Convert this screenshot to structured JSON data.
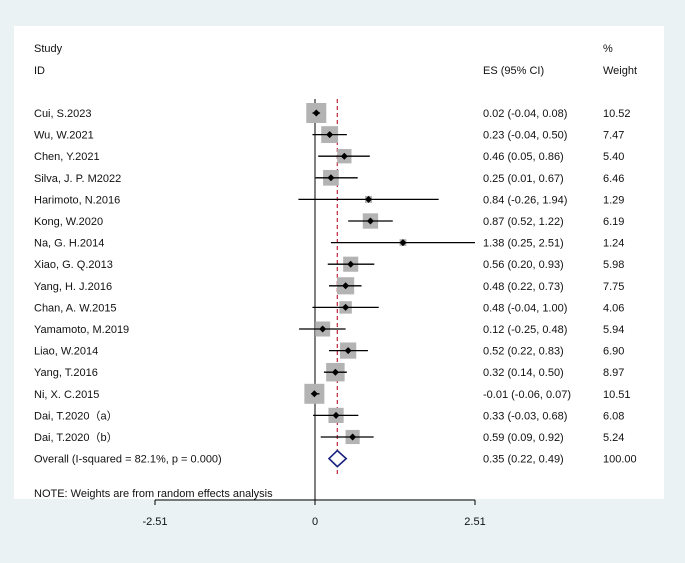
{
  "chart_data": {
    "type": "forest",
    "header": {
      "study_line1": "Study",
      "study_line2": "ID",
      "es_label": "ES (95% CI)",
      "weight_line1": "%",
      "weight_line2": "Weight"
    },
    "x_ticks": [
      {
        "value": -2.51,
        "label": "-2.51"
      },
      {
        "value": 0,
        "label": "0"
      },
      {
        "value": 2.51,
        "label": "2.51"
      }
    ],
    "xlim": [
      -2.51,
      2.51
    ],
    "studies": [
      {
        "id": "Cui, S.2023",
        "es": 0.02,
        "lo": -0.04,
        "hi": 0.08,
        "ci_text": "0.02 (-0.04, 0.08)",
        "weight": 10.52,
        "weight_text": "10.52"
      },
      {
        "id": "Wu, W.2021",
        "es": 0.23,
        "lo": -0.04,
        "hi": 0.5,
        "ci_text": "0.23 (-0.04, 0.50)",
        "weight": 7.47,
        "weight_text": "7.47"
      },
      {
        "id": "Chen, Y.2021",
        "es": 0.46,
        "lo": 0.05,
        "hi": 0.86,
        "ci_text": "0.46 (0.05, 0.86)",
        "weight": 5.4,
        "weight_text": "5.40"
      },
      {
        "id": "Silva, J. P. M2022",
        "es": 0.25,
        "lo": 0.01,
        "hi": 0.67,
        "ci_text": "0.25 (0.01, 0.67)",
        "weight": 6.46,
        "weight_text": "6.46"
      },
      {
        "id": "Harimoto, N.2016",
        "es": 0.84,
        "lo": -0.26,
        "hi": 1.94,
        "ci_text": "0.84 (-0.26, 1.94)",
        "weight": 1.29,
        "weight_text": "1.29"
      },
      {
        "id": "Kong, W.2020",
        "es": 0.87,
        "lo": 0.52,
        "hi": 1.22,
        "ci_text": "0.87 (0.52, 1.22)",
        "weight": 6.19,
        "weight_text": "6.19"
      },
      {
        "id": "Na, G. H.2014",
        "es": 1.38,
        "lo": 0.25,
        "hi": 2.51,
        "ci_text": "1.38 (0.25, 2.51)",
        "weight": 1.24,
        "weight_text": "1.24"
      },
      {
        "id": "Xiao, G. Q.2013",
        "es": 0.56,
        "lo": 0.2,
        "hi": 0.93,
        "ci_text": "0.56 (0.20, 0.93)",
        "weight": 5.98,
        "weight_text": "5.98"
      },
      {
        "id": "Yang, H. J.2016",
        "es": 0.48,
        "lo": 0.22,
        "hi": 0.73,
        "ci_text": "0.48 (0.22, 0.73)",
        "weight": 7.75,
        "weight_text": "7.75"
      },
      {
        "id": "Chan, A. W.2015",
        "es": 0.48,
        "lo": -0.04,
        "hi": 1.0,
        "ci_text": "0.48 (-0.04, 1.00)",
        "weight": 4.06,
        "weight_text": "4.06"
      },
      {
        "id": "Yamamoto, M.2019",
        "es": 0.12,
        "lo": -0.25,
        "hi": 0.48,
        "ci_text": "0.12 (-0.25, 0.48)",
        "weight": 5.94,
        "weight_text": "5.94"
      },
      {
        "id": "Liao, W.2014",
        "es": 0.52,
        "lo": 0.22,
        "hi": 0.83,
        "ci_text": "0.52 (0.22, 0.83)",
        "weight": 6.9,
        "weight_text": "6.90"
      },
      {
        "id": "Yang, T.2016",
        "es": 0.32,
        "lo": 0.14,
        "hi": 0.5,
        "ci_text": "0.32 (0.14, 0.50)",
        "weight": 8.97,
        "weight_text": "8.97"
      },
      {
        "id": "Ni, X. C.2015",
        "es": -0.01,
        "lo": -0.06,
        "hi": 0.07,
        "ci_text": "-0.01 (-0.06, 0.07)",
        "weight": 10.51,
        "weight_text": "10.51"
      },
      {
        "id": "Dai, T.2020（a）",
        "es": 0.33,
        "lo": -0.03,
        "hi": 0.68,
        "ci_text": "0.33 (-0.03, 0.68)",
        "weight": 6.08,
        "weight_text": "6.08"
      },
      {
        "id": "Dai, T.2020（b）",
        "es": 0.59,
        "lo": 0.09,
        "hi": 0.92,
        "ci_text": "0.59 (0.09, 0.92)",
        "weight": 5.24,
        "weight_text": "5.24"
      }
    ],
    "overall": {
      "label": "Overall  (I-squared = 82.1%, p = 0.000)",
      "es": 0.35,
      "lo": 0.22,
      "hi": 0.49,
      "ci_text": "0.35 (0.22, 0.49)",
      "weight_text": "100.00"
    },
    "note": "NOTE: Weights are from random effects analysis",
    "colors": {
      "background": "#eaf2f3",
      "plot_bg": "#ffffff",
      "box": "#b3b3b3",
      "marker": "#000000",
      "overall_line": "#c0243a",
      "diamond": "#1a237e"
    }
  }
}
